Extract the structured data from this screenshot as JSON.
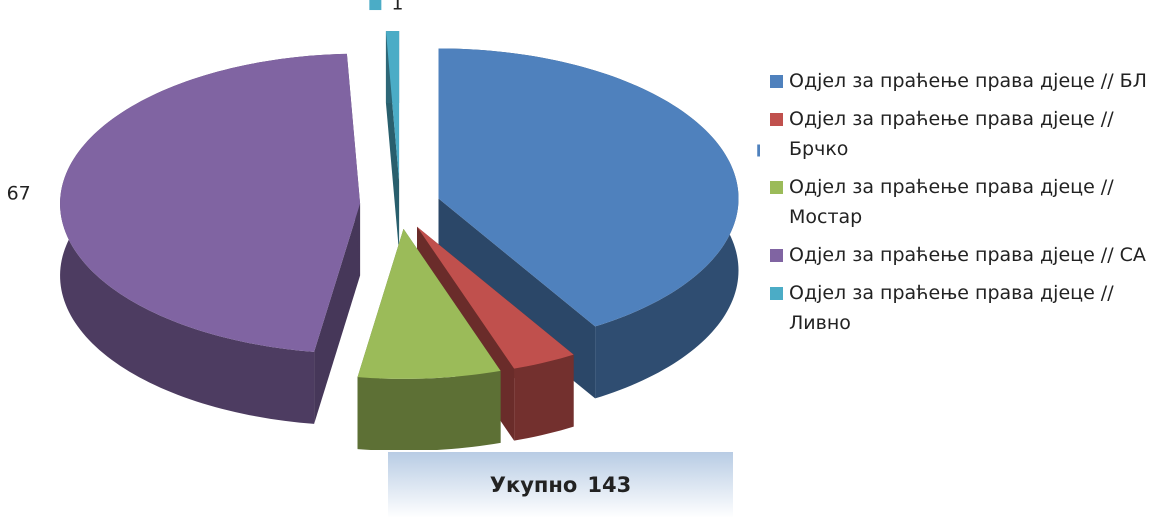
{
  "chart_data": {
    "type": "pie3d",
    "categories": [
      "Одјел за праћење права дјеце // БЛ",
      "Одјел за праћење права дјеце // Брчко",
      "Одјел за праћење права дјеце // Мостар",
      "Одјел за праћење права дјеце // СА",
      "Одјел за праћење права дјеце // Ливно"
    ],
    "values": [
      59,
      5,
      11,
      67,
      1
    ],
    "colors": [
      "#4f81bd",
      "#c0504d",
      "#9bbb59",
      "#8064a2",
      "#4bacc6"
    ],
    "total_label": "Укупно",
    "total": 143
  }
}
